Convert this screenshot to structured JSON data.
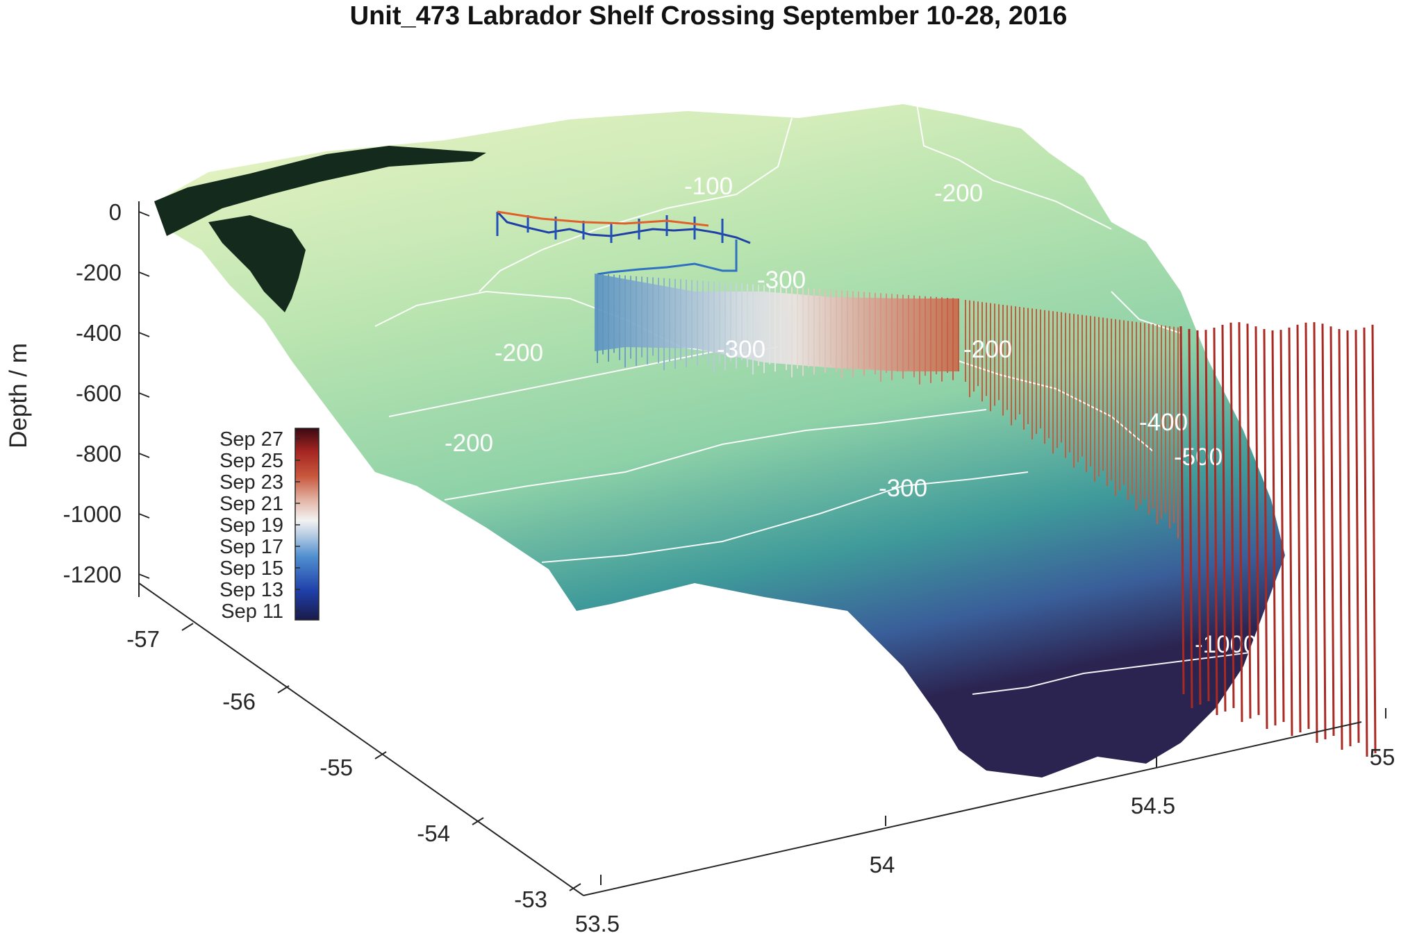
{
  "chart_data": {
    "type": "surface",
    "title": "Unit_473 Labrador Shelf Crossing September 10-28, 2016",
    "zlabel": "Depth / m",
    "xlabel": "",
    "ylabel": "",
    "z_ticks": [
      "0",
      "-200",
      "-400",
      "-600",
      "-800",
      "-1000",
      "-1200"
    ],
    "lon_ticks": [
      "-57",
      "-56",
      "-55",
      "-54",
      "-53"
    ],
    "lat_ticks": [
      "53.5",
      "54",
      "54.5",
      "55"
    ],
    "zlim": [
      -1200,
      0
    ],
    "lonlim": [
      -57.5,
      -53
    ],
    "latlim": [
      53.5,
      55
    ],
    "grid": false,
    "contour_labels": [
      "-100",
      "-200",
      "-300",
      "-200",
      "-300",
      "-200",
      "-200",
      "-300",
      "-400",
      "-500",
      "-1000"
    ],
    "colorbar": {
      "placement": "inside-left",
      "ticks": [
        "Sep 27",
        "Sep 25",
        "Sep 23",
        "Sep 21",
        "Sep 19",
        "Sep 17",
        "Sep 15",
        "Sep 13",
        "Sep 11"
      ],
      "colors": [
        "#1a1a4a",
        "#1f3fa8",
        "#4f8fd0",
        "#bcd0e4",
        "#f2f2f2",
        "#e4b8aa",
        "#c8573d",
        "#a52522",
        "#3a0a12"
      ]
    },
    "surface_colors": {
      "shallow": "#f6f8c8",
      "mid": "#a8dea8",
      "deep": "#2f7a96",
      "deepest": "#2b2350",
      "land": "#142a1c"
    },
    "glider_track": {
      "time_range": [
        "Sep 10",
        "Sep 28"
      ],
      "max_depth_m": -1000
    }
  }
}
